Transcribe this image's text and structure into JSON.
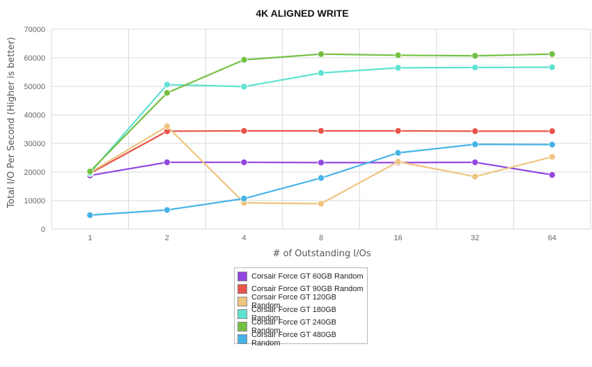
{
  "chart_data": {
    "type": "line",
    "title": "4K ALIGNED WRITE",
    "xlabel": "# of Outstanding I/Os",
    "ylabel": "Total I/O Per Second (Higher is better)",
    "categories": [
      "1",
      "2",
      "4",
      "8",
      "16",
      "32",
      "64"
    ],
    "ylim": [
      0,
      70000
    ],
    "yticks": [
      0,
      10000,
      20000,
      30000,
      40000,
      50000,
      60000,
      70000
    ],
    "grid": true,
    "legend_position": "bottom-center",
    "series": [
      {
        "name": "Corsair Force GT 60GB Random",
        "color": "#9146e0",
        "values": [
          18800,
          23400,
          23400,
          23300,
          23300,
          23400,
          19000
        ]
      },
      {
        "name": "Corsair Force GT 90GB Random",
        "color": "#e8534a",
        "values": [
          19500,
          34300,
          34400,
          34400,
          34400,
          34300,
          34300
        ]
      },
      {
        "name": "Corsair Force GT 120GB Random",
        "color": "#efc47f",
        "values": [
          19800,
          36000,
          9200,
          8900,
          23600,
          18400,
          25300
        ]
      },
      {
        "name": "Corsair Force GT 180GB Random",
        "color": "#5ee3d2",
        "values": [
          19700,
          50600,
          49900,
          54700,
          56500,
          56600,
          56700
        ]
      },
      {
        "name": "Corsair Force GT 240GB Random",
        "color": "#74c043",
        "values": [
          20200,
          47700,
          59300,
          61300,
          60900,
          60700,
          61300
        ]
      },
      {
        "name": "Corsair Force GT 480GB Random",
        "color": "#45b3e8",
        "values": [
          4900,
          6700,
          10700,
          17900,
          26700,
          29700,
          29600
        ]
      }
    ]
  }
}
